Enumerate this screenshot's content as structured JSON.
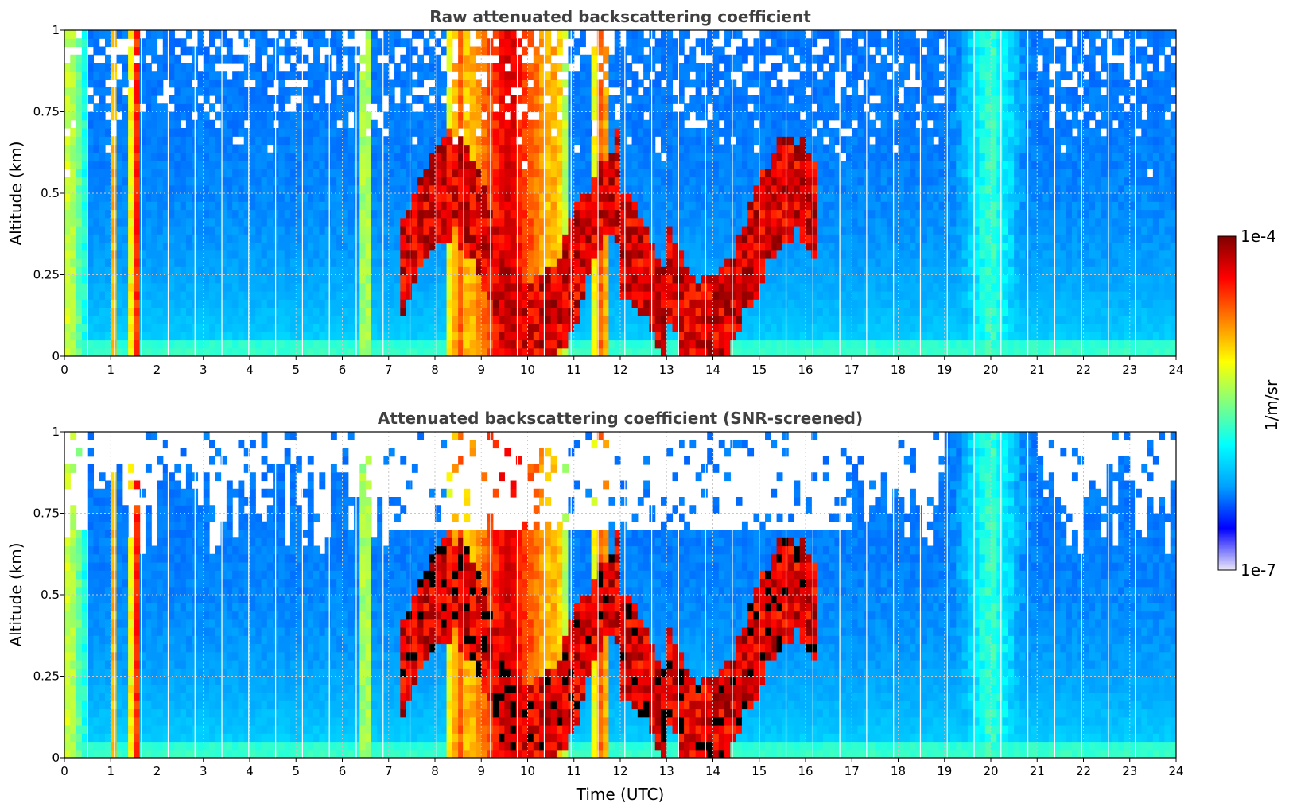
{
  "chart_data": [
    {
      "type": "heatmap",
      "title": "Raw attenuated backscattering coefficient",
      "xlabel": "",
      "ylabel": "Altitude (km)",
      "xlim": [
        0,
        24
      ],
      "ylim": [
        0,
        1
      ],
      "x_ticks": [
        "0",
        "1",
        "2",
        "3",
        "4",
        "5",
        "6",
        "7",
        "8",
        "9",
        "10",
        "11",
        "12",
        "13",
        "14",
        "15",
        "16",
        "17",
        "18",
        "19",
        "20",
        "21",
        "22",
        "23",
        "24"
      ],
      "y_ticks": [
        "0",
        "0.25",
        "0.5",
        "0.75",
        "1"
      ],
      "grid": true,
      "screened": false
    },
    {
      "type": "heatmap",
      "title": "Attenuated backscattering coefficient (SNR-screened)",
      "xlabel": "Time (UTC)",
      "ylabel": "Altitude (km)",
      "xlim": [
        0,
        24
      ],
      "ylim": [
        0,
        1
      ],
      "x_ticks": [
        "0",
        "1",
        "2",
        "3",
        "4",
        "5",
        "6",
        "7",
        "8",
        "9",
        "10",
        "11",
        "12",
        "13",
        "14",
        "15",
        "16",
        "17",
        "18",
        "19",
        "20",
        "21",
        "22",
        "23",
        "24"
      ],
      "y_ticks": [
        "0",
        "0.25",
        "0.5",
        "0.75",
        "1"
      ],
      "grid": true,
      "screened": true
    }
  ],
  "colorbar": {
    "label": "1/m/sr",
    "max_label": "1e-4",
    "min_label": "1e-7",
    "scale": "log",
    "colormap": [
      "#ece8f8",
      "#0000ff",
      "#00a0ff",
      "#00ffff",
      "#80ff80",
      "#ffff00",
      "#ff8000",
      "#ff0000",
      "#800000"
    ]
  }
}
